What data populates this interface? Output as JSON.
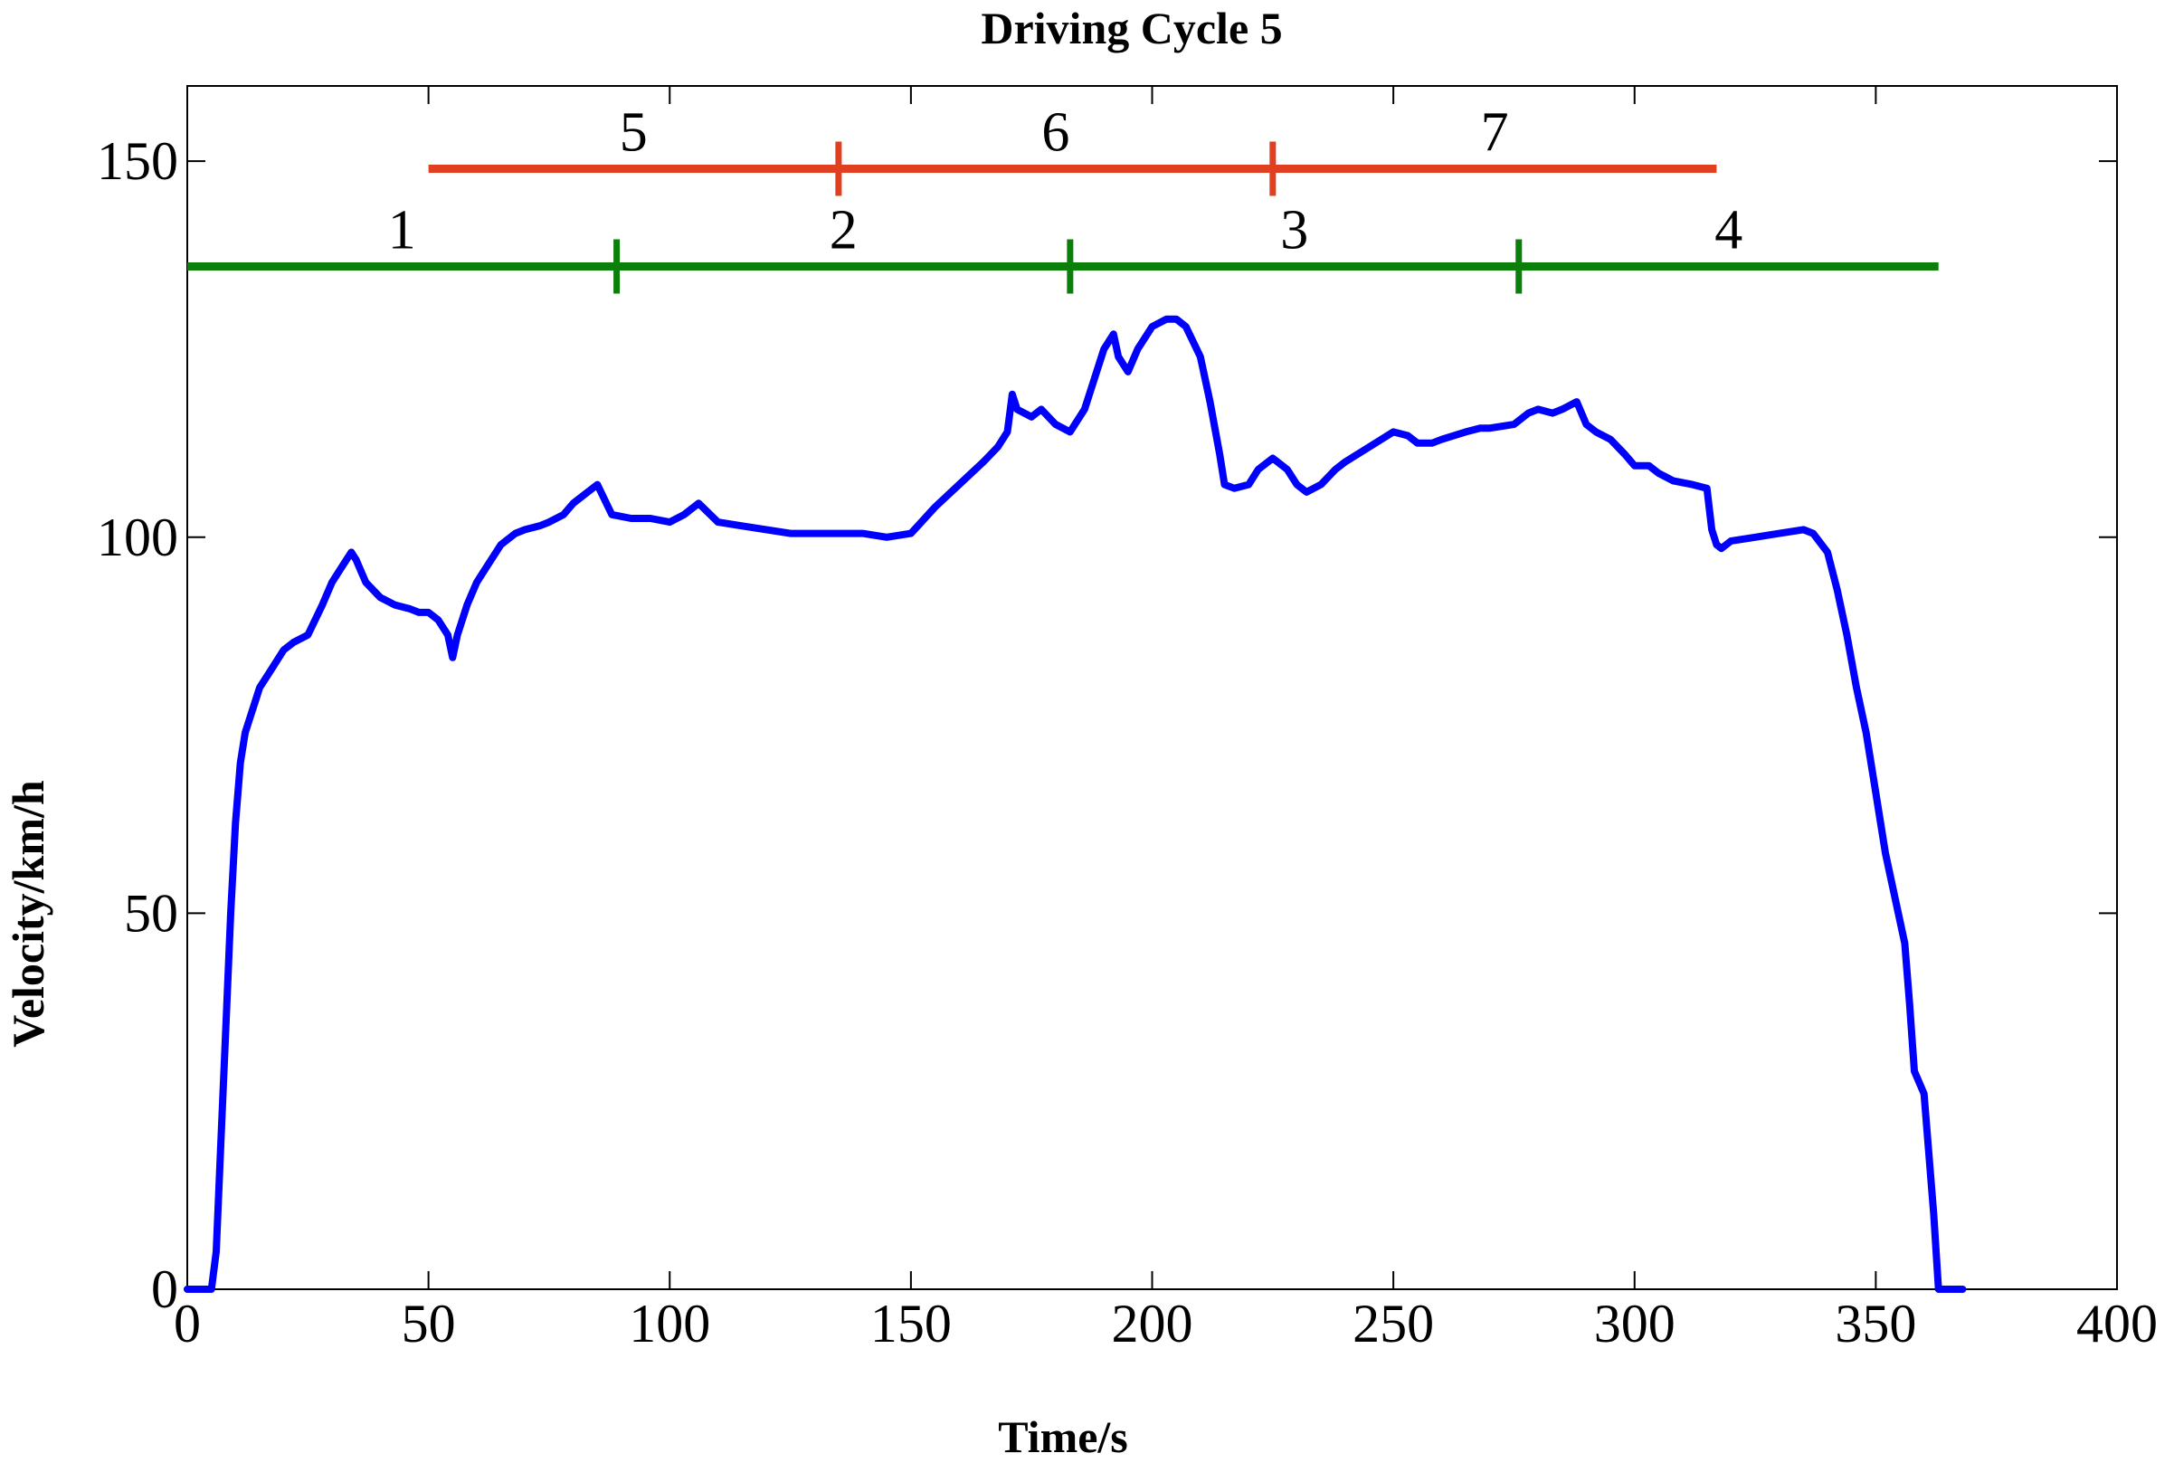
{
  "chart_data": {
    "type": "line",
    "title": "Driving Cycle 5",
    "xlabel": "Time/s",
    "ylabel": "Velocity/km/h",
    "xlim": [
      0,
      400
    ],
    "ylim": [
      0,
      160
    ],
    "xticks": [
      0,
      50,
      100,
      150,
      200,
      250,
      300,
      350,
      400
    ],
    "yticks": [
      0,
      50,
      100,
      150
    ],
    "grid": false,
    "colors": {
      "velocity": "#0000ff",
      "segments_top": "#e0401f",
      "segments_bottom": "#0a7f0a"
    },
    "series": [
      {
        "name": "Velocity",
        "x": [
          0,
          5,
          6,
          7,
          8,
          9,
          10,
          11,
          12,
          13,
          14,
          15,
          17,
          20,
          22,
          25,
          28,
          30,
          32,
          34,
          35,
          37,
          40,
          43,
          46,
          48,
          50,
          52,
          54,
          55,
          56,
          58,
          60,
          62,
          65,
          68,
          70,
          73,
          75,
          78,
          80,
          83,
          85,
          88,
          92,
          96,
          100,
          103,
          106,
          110,
          115,
          120,
          125,
          130,
          135,
          140,
          145,
          150,
          155,
          160,
          165,
          168,
          170,
          171,
          172,
          175,
          177,
          180,
          183,
          186,
          188,
          190,
          192,
          193,
          195,
          197,
          200,
          203,
          205,
          207,
          210,
          212,
          214,
          215,
          217,
          220,
          222,
          225,
          228,
          230,
          232,
          235,
          238,
          240,
          245,
          250,
          253,
          255,
          258,
          260,
          265,
          268,
          270,
          275,
          278,
          280,
          283,
          285,
          288,
          290,
          292,
          295,
          298,
          300,
          303,
          305,
          308,
          312,
          315,
          316,
          317,
          318,
          320,
          325,
          330,
          335,
          337,
          340,
          342,
          344,
          346,
          348,
          350,
          352,
          354,
          356,
          357,
          358,
          360,
          362,
          363,
          365,
          368
        ],
        "values": [
          0,
          0,
          5,
          20,
          35,
          50,
          62,
          70,
          74,
          76,
          78,
          80,
          82,
          85,
          86,
          87,
          91,
          94,
          96,
          98,
          97,
          94,
          92,
          91,
          90.5,
          90,
          90,
          89,
          87,
          84,
          87,
          91,
          94,
          96,
          99,
          100.5,
          101,
          101.5,
          102,
          103,
          104.5,
          106,
          107,
          103,
          102.5,
          102.5,
          102,
          103,
          104.5,
          102,
          101.5,
          101,
          100.5,
          100.5,
          100.5,
          100.5,
          100,
          100.5,
          104,
          107,
          110,
          112,
          114,
          119,
          117,
          116,
          117,
          115,
          114,
          117,
          121,
          125,
          127,
          124,
          122,
          125,
          128,
          129,
          129,
          128,
          124,
          118,
          111,
          107,
          106.5,
          107,
          109,
          110.5,
          109,
          107,
          106,
          107,
          109,
          110,
          112,
          114,
          113.5,
          112.5,
          112.5,
          113,
          114,
          114.5,
          114.5,
          115,
          116.5,
          117,
          116.5,
          117,
          118,
          115,
          114,
          113,
          111,
          109.5,
          109.5,
          108.5,
          107.5,
          107,
          106.5,
          101,
          99,
          98.5,
          99.5,
          100,
          100.5,
          101,
          100.5,
          98,
          93,
          87,
          80,
          74,
          66,
          58,
          52,
          46,
          38,
          29,
          26,
          10,
          0,
          0,
          0
        ]
      }
    ],
    "segments": [
      {
        "group": "top",
        "label": "5",
        "start": 50,
        "end": 135
      },
      {
        "group": "top",
        "label": "6",
        "start": 135,
        "end": 225
      },
      {
        "group": "top",
        "label": "7",
        "start": 225,
        "end": 317
      },
      {
        "group": "bottom",
        "label": "1",
        "start": 0,
        "end": 89
      },
      {
        "group": "bottom",
        "label": "2",
        "start": 89,
        "end": 183
      },
      {
        "group": "bottom",
        "label": "3",
        "start": 183,
        "end": 276
      },
      {
        "group": "bottom",
        "label": "4",
        "start": 276,
        "end": 363
      }
    ],
    "segment_levels": {
      "top": 149,
      "bottom": 136
    }
  }
}
